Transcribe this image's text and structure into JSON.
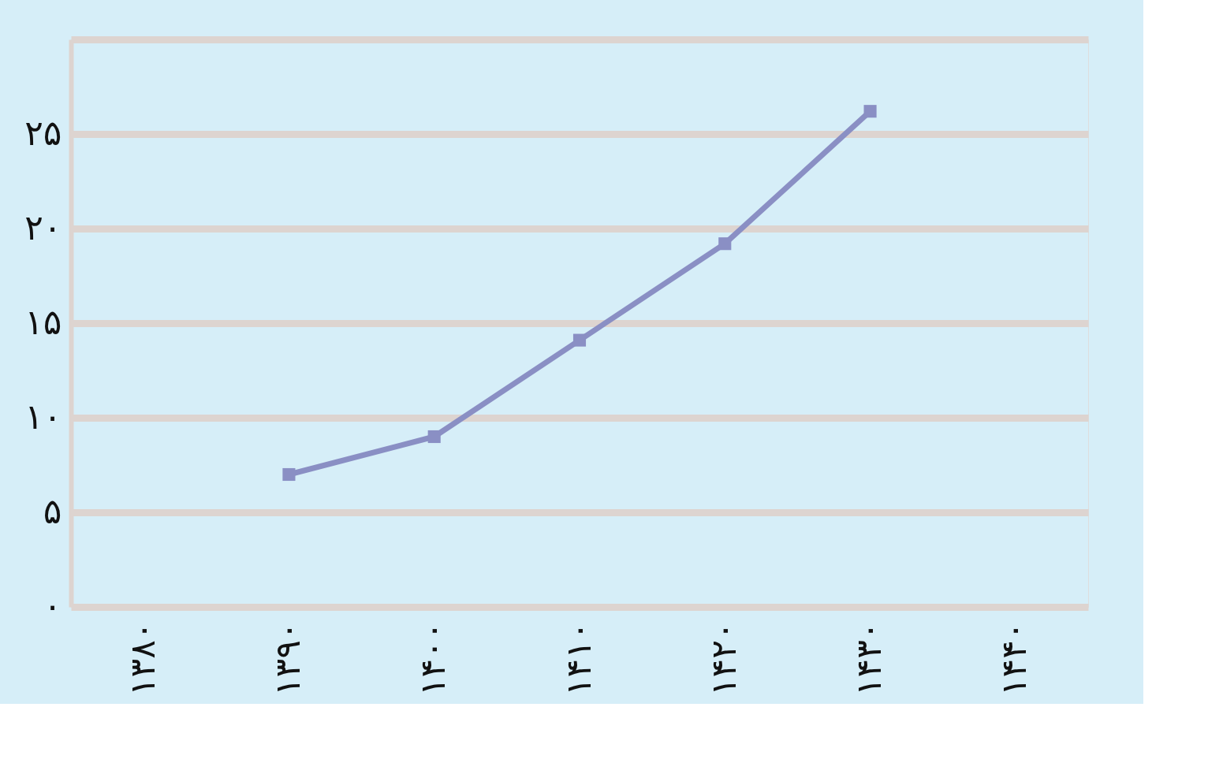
{
  "chart_data": {
    "type": "line",
    "categories": [
      "۱۳۸۰",
      "۱۳۹۰",
      "۱۴۰۰",
      "۱۴۱۰",
      "۱۴۲۰",
      "۱۴۳۰",
      "۱۴۴۰"
    ],
    "series": [
      {
        "color": "#8a8fc4",
        "values": [
          null,
          7.0,
          9.0,
          14.1,
          19.2,
          26.2,
          null
        ]
      }
    ],
    "ylim": [
      0,
      30
    ],
    "yticks": [
      {
        "value": 0,
        "label": "۰"
      },
      {
        "value": 5,
        "label": "۵"
      },
      {
        "value": 10,
        "label": "۱۰"
      },
      {
        "value": 15,
        "label": "۱۵"
      },
      {
        "value": 20,
        "label": "۲۰"
      },
      {
        "value": 25,
        "label": "۲۵"
      },
      {
        "value": 30,
        "label": null
      }
    ],
    "grid": "y",
    "marker": "square",
    "line_style": "solid"
  }
}
